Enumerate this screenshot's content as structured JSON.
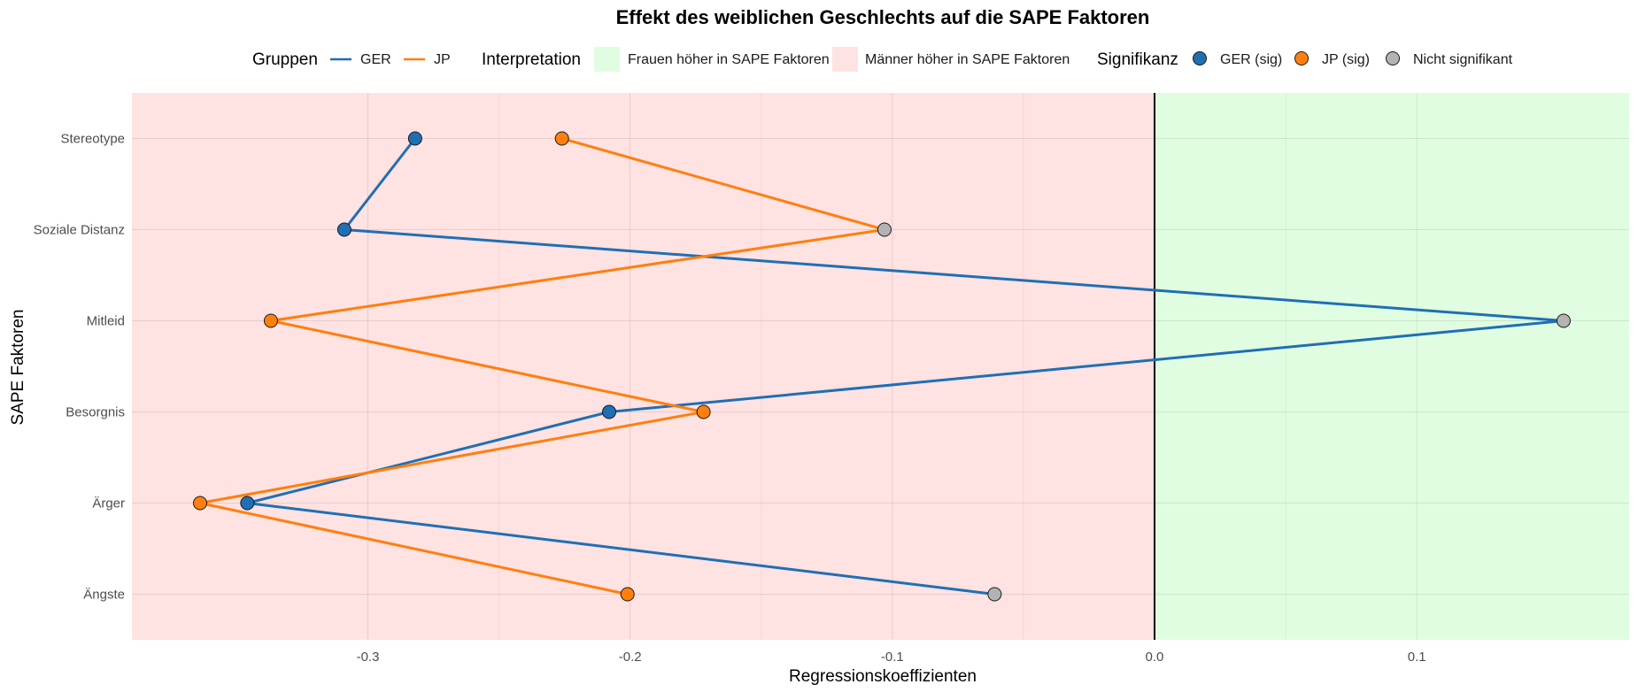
{
  "chart_data": {
    "type": "line",
    "title": "Effekt des weiblichen Geschlechts auf die SAPE Faktoren",
    "xlabel": "Regressionskoeffizienten",
    "ylabel": "SAPE Faktoren",
    "xlim": [
      -0.39,
      0.181
    ],
    "x_ticks": [
      -0.3,
      -0.2,
      -0.1,
      0.0,
      0.1
    ],
    "x_tick_labels": [
      "-0.3",
      "-0.2",
      "-0.1",
      "0.0",
      "0.1"
    ],
    "categories": [
      "Stereotype",
      "Soziale Distanz",
      "Mitleid",
      "Besorgnis",
      "Ärger",
      "Ängste"
    ],
    "grid": true,
    "reference_line_x": 0.0,
    "series": [
      {
        "name": "GER",
        "color": "#1f6fb4",
        "values": [
          -0.282,
          -0.309,
          0.156,
          -0.208,
          -0.346,
          -0.061
        ],
        "significant": [
          true,
          true,
          false,
          true,
          true,
          false
        ]
      },
      {
        "name": "JP",
        "color": "#ff7f0e",
        "values": [
          -0.226,
          -0.103,
          -0.337,
          -0.172,
          -0.364,
          -0.201
        ],
        "significant": [
          true,
          false,
          true,
          true,
          true,
          true
        ]
      }
    ],
    "regions": [
      {
        "label": "Frauen höher in SAPE Faktoren",
        "color": "#e1fde1",
        "side": "positive"
      },
      {
        "label": "Männer höher in SAPE Faktoren",
        "color": "#ffe2e2",
        "side": "negative"
      }
    ],
    "legend": {
      "placement": "top",
      "groups_title": "Gruppen",
      "groups": [
        {
          "label": "GER",
          "color": "#1f6fb4"
        },
        {
          "label": "JP",
          "color": "#ff7f0e"
        }
      ],
      "interpretation_title": "Interpretation",
      "interpretation": [
        {
          "label": "Frauen höher in SAPE Faktoren",
          "color": "#e1fde1"
        },
        {
          "label": "Männer höher in SAPE Faktoren",
          "color": "#ffe2e2"
        }
      ],
      "significance_title": "Signifikanz",
      "significance": [
        {
          "label": "GER (sig)",
          "color": "#1f6fb4"
        },
        {
          "label": "JP (sig)",
          "color": "#ff7f0e"
        },
        {
          "label": "Nicht signifikant",
          "color": "#b3b3b3"
        }
      ]
    }
  }
}
